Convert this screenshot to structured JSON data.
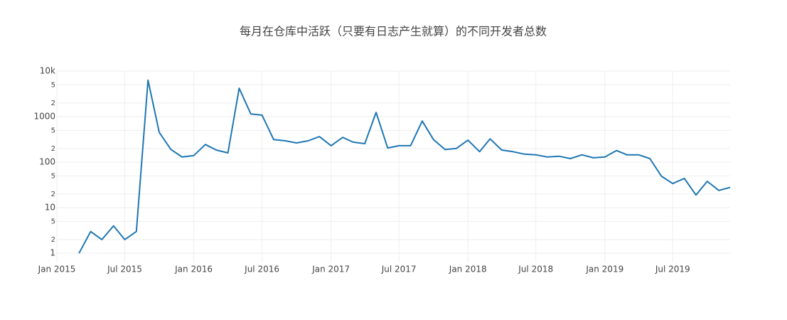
{
  "chart_data": {
    "type": "line",
    "title": "每月在仓库中活跃（只要有日志产生就算）的不同开发者总数",
    "x": [
      "2015-03",
      "2015-04",
      "2015-05",
      "2015-06",
      "2015-07",
      "2015-08",
      "2015-09",
      "2015-10",
      "2015-11",
      "2015-12",
      "2016-01",
      "2016-02",
      "2016-03",
      "2016-04",
      "2016-05",
      "2016-06",
      "2016-07",
      "2016-08",
      "2016-09",
      "2016-10",
      "2016-11",
      "2016-12",
      "2017-01",
      "2017-02",
      "2017-03",
      "2017-04",
      "2017-05",
      "2017-06",
      "2017-07",
      "2017-08",
      "2017-09",
      "2017-10",
      "2017-11",
      "2017-12",
      "2018-01",
      "2018-02",
      "2018-03",
      "2018-04",
      "2018-05",
      "2018-06",
      "2018-07",
      "2018-08",
      "2018-09",
      "2018-10",
      "2018-11",
      "2018-12",
      "2019-01",
      "2019-02",
      "2019-03",
      "2019-04",
      "2019-05",
      "2019-06",
      "2019-07",
      "2019-08",
      "2019-09",
      "2019-10",
      "2019-11",
      "2019-12"
    ],
    "series": [
      {
        "name": "developers",
        "color": "#1f77b4",
        "values": [
          1,
          3,
          2,
          4,
          2,
          3,
          6300,
          450,
          190,
          130,
          140,
          245,
          185,
          160,
          4200,
          1150,
          1080,
          315,
          295,
          265,
          295,
          365,
          230,
          350,
          275,
          255,
          1240,
          205,
          230,
          230,
          800,
          315,
          190,
          200,
          305,
          170,
          325,
          185,
          170,
          150,
          145,
          130,
          135,
          120,
          145,
          125,
          130,
          180,
          145,
          145,
          120,
          49,
          34,
          44,
          19,
          38,
          24,
          28
        ]
      }
    ],
    "xlim": [
      "2015-01",
      "2019-12"
    ],
    "xticks": [
      {
        "value": "2015-01",
        "label": "Jan 2015"
      },
      {
        "value": "2015-07",
        "label": "Jul 2015"
      },
      {
        "value": "2016-01",
        "label": "Jan 2016"
      },
      {
        "value": "2016-07",
        "label": "Jul 2016"
      },
      {
        "value": "2017-01",
        "label": "Jan 2017"
      },
      {
        "value": "2017-07",
        "label": "Jul 2017"
      },
      {
        "value": "2018-01",
        "label": "Jan 2018"
      },
      {
        "value": "2018-07",
        "label": "Jul 2018"
      },
      {
        "value": "2019-01",
        "label": "Jan 2019"
      },
      {
        "value": "2019-07",
        "label": "Jul 2019"
      }
    ],
    "ylim": [
      0.63,
      10000
    ],
    "log_y": true,
    "yticks": [
      1,
      2,
      5,
      10,
      {
        "value": 20,
        "label": "2"
      },
      {
        "value": 50,
        "label": "5"
      },
      100,
      {
        "value": 200,
        "label": "2"
      },
      {
        "value": 500,
        "label": "5"
      },
      1000,
      {
        "value": 2000,
        "label": "2"
      },
      {
        "value": 5000,
        "label": "5"
      },
      {
        "value": 10000,
        "label": "10k"
      }
    ],
    "grid": true
  }
}
